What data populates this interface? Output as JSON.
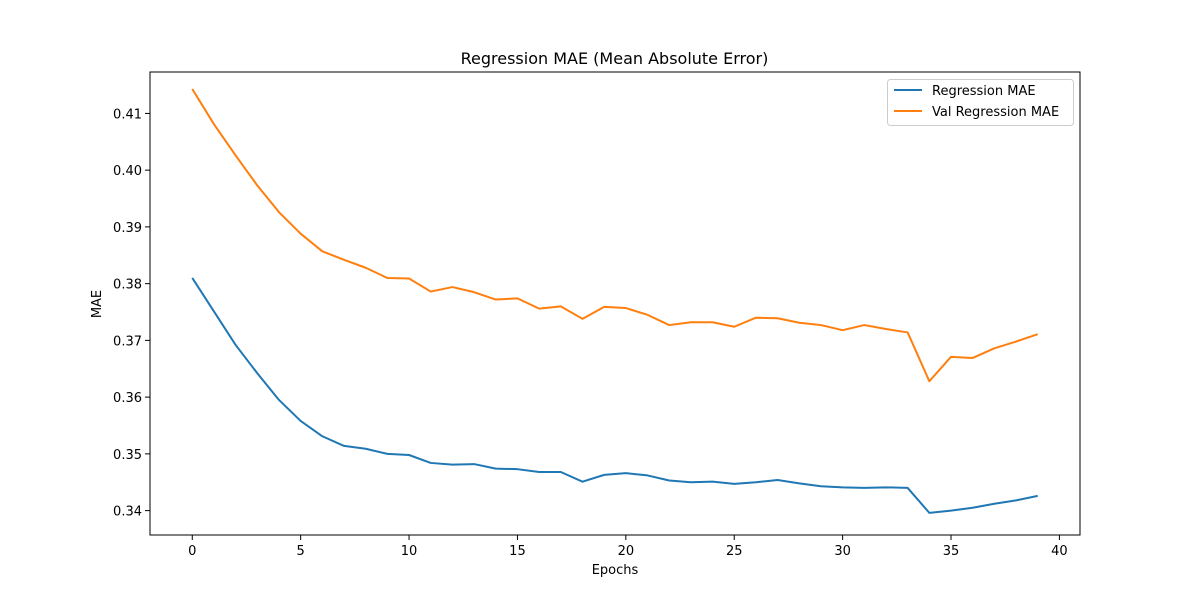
{
  "chart_data": {
    "type": "line",
    "title": "Regression MAE (Mean Absolute Error)",
    "xlabel": "Epochs",
    "ylabel": "MAE",
    "xlim": [
      -1.95,
      40.95
    ],
    "ylim": [
      0.3357,
      0.4173
    ],
    "xticks": [
      0,
      5,
      10,
      15,
      20,
      25,
      30,
      35,
      40
    ],
    "xtick_labels": [
      "0",
      "5",
      "10",
      "15",
      "20",
      "25",
      "30",
      "35",
      "40"
    ],
    "yticks": [
      0.34,
      0.35,
      0.36,
      0.37,
      0.38,
      0.39,
      0.4,
      0.41
    ],
    "ytick_labels": [
      "0.34",
      "0.35",
      "0.36",
      "0.37",
      "0.38",
      "0.39",
      "0.40",
      "0.41"
    ],
    "grid": false,
    "legend_position": "top-right",
    "x": [
      0,
      1,
      2,
      3,
      4,
      5,
      6,
      7,
      8,
      9,
      10,
      11,
      12,
      13,
      14,
      15,
      16,
      17,
      18,
      19,
      20,
      21,
      22,
      23,
      24,
      25,
      26,
      27,
      28,
      29,
      30,
      31,
      32,
      33,
      34,
      35,
      36,
      37,
      38,
      39
    ],
    "series": [
      {
        "name": "Regression MAE",
        "color": "#1f77b4",
        "values": [
          0.381,
          0.3751,
          0.3692,
          0.3642,
          0.3595,
          0.3558,
          0.3531,
          0.3514,
          0.3509,
          0.35,
          0.3498,
          0.3484,
          0.3481,
          0.3482,
          0.3474,
          0.3473,
          0.3468,
          0.3468,
          0.3451,
          0.3463,
          0.3466,
          0.3462,
          0.3453,
          0.345,
          0.3451,
          0.3447,
          0.345,
          0.3454,
          0.3448,
          0.3443,
          0.3441,
          0.344,
          0.3441,
          0.344,
          0.3396,
          0.34,
          0.3405,
          0.3412,
          0.3418,
          0.3426
        ]
      },
      {
        "name": "Val Regression MAE",
        "color": "#ff7f0e",
        "values": [
          0.4143,
          0.4081,
          0.4026,
          0.3973,
          0.3926,
          0.3888,
          0.3857,
          0.3842,
          0.3828,
          0.381,
          0.3809,
          0.3786,
          0.3794,
          0.3785,
          0.3772,
          0.3774,
          0.3756,
          0.376,
          0.3738,
          0.3759,
          0.3757,
          0.3745,
          0.3727,
          0.3732,
          0.3732,
          0.3724,
          0.374,
          0.3739,
          0.3731,
          0.3727,
          0.3718,
          0.3727,
          0.372,
          0.3714,
          0.3628,
          0.3671,
          0.3669,
          0.3686,
          0.3698,
          0.3711
        ]
      }
    ]
  }
}
